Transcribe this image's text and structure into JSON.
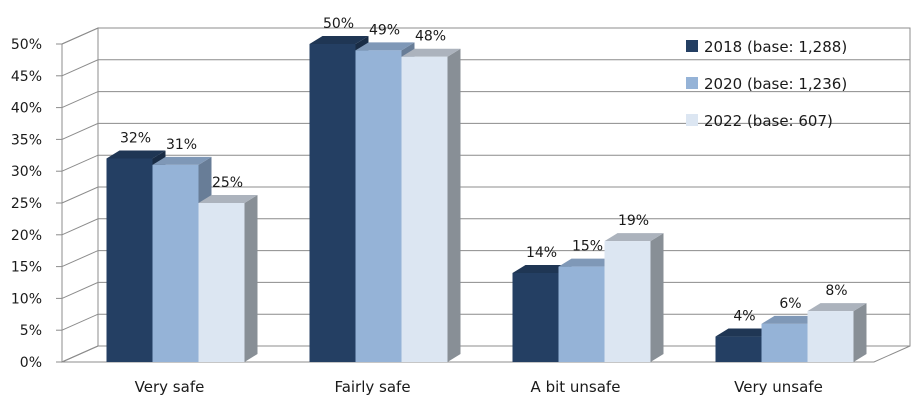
{
  "chart_data": {
    "type": "bar",
    "style": "3d-clustered",
    "categories": [
      "Very safe",
      "Fairly safe",
      "A bit unsafe",
      "Very unsafe"
    ],
    "series": [
      {
        "name": "2018 (base: 1,288)",
        "values": [
          32,
          50,
          14,
          4
        ],
        "labels": [
          "32%",
          "50%",
          "14%",
          "4%"
        ],
        "color": "#243f63"
      },
      {
        "name": "2020 (base: 1,236)",
        "values": [
          31,
          49,
          15,
          6
        ],
        "labels": [
          "31%",
          "49%",
          "15%",
          "6%"
        ],
        "color": "#95b3d7"
      },
      {
        "name": "2022 (base: 607)",
        "values": [
          25,
          48,
          19,
          8
        ],
        "labels": [
          "25%",
          "48%",
          "19%",
          "8%"
        ],
        "color": "#dce6f2"
      }
    ],
    "y_ticks": [
      "0%",
      "5%",
      "10%",
      "15%",
      "20%",
      "25%",
      "30%",
      "35%",
      "40%",
      "45%",
      "50%"
    ],
    "ylim": [
      0,
      50
    ],
    "grid": true,
    "legend_position": "top-right",
    "wall_color": "#ffffff",
    "side_color": "#8c8c8c"
  }
}
